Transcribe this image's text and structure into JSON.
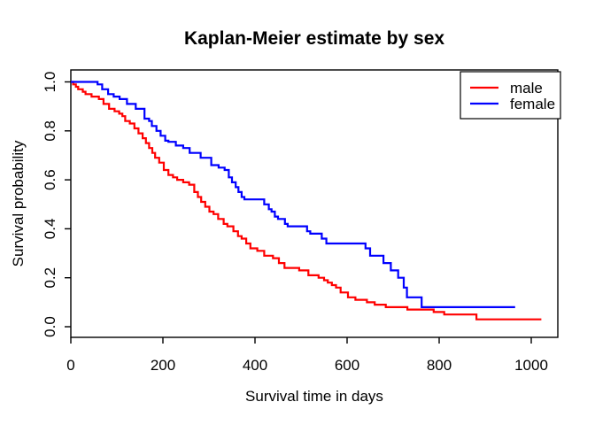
{
  "chart_data": {
    "type": "line",
    "subtype": "kaplan-meier-step",
    "title": "Kaplan-Meier estimate by sex",
    "xlabel": "Survival time in days",
    "ylabel": "Survival probability",
    "xlim": [
      0,
      1057
    ],
    "ylim": [
      -0.04,
      1.04
    ],
    "x_ticks": [
      0,
      200,
      400,
      600,
      800,
      1000
    ],
    "x_tick_labels": [
      "0",
      "200",
      "400",
      "600",
      "800",
      "1000"
    ],
    "y_ticks": [
      0,
      0.2,
      0.4,
      0.6,
      0.8,
      1.0
    ],
    "y_tick_labels": [
      "0.0",
      "0.2",
      "0.4",
      "0.6",
      "0.8",
      "1.0"
    ],
    "grid": false,
    "background": "#ffffff",
    "axis_color": "#000000",
    "legend_position": "top-right",
    "series": [
      {
        "name": "male",
        "color": "#ff0000",
        "points": [
          [
            0,
            1.0
          ],
          [
            5,
            0.99
          ],
          [
            11,
            0.98
          ],
          [
            16,
            0.97
          ],
          [
            26,
            0.96
          ],
          [
            32,
            0.95
          ],
          [
            45,
            0.94
          ],
          [
            61,
            0.93
          ],
          [
            71,
            0.91
          ],
          [
            83,
            0.89
          ],
          [
            95,
            0.88
          ],
          [
            105,
            0.87
          ],
          [
            112,
            0.86
          ],
          [
            118,
            0.84
          ],
          [
            128,
            0.83
          ],
          [
            138,
            0.81
          ],
          [
            147,
            0.79
          ],
          [
            156,
            0.77
          ],
          [
            163,
            0.75
          ],
          [
            170,
            0.73
          ],
          [
            177,
            0.71
          ],
          [
            183,
            0.69
          ],
          [
            192,
            0.67
          ],
          [
            202,
            0.64
          ],
          [
            212,
            0.62
          ],
          [
            222,
            0.61
          ],
          [
            231,
            0.6
          ],
          [
            244,
            0.59
          ],
          [
            257,
            0.58
          ],
          [
            268,
            0.55
          ],
          [
            276,
            0.53
          ],
          [
            283,
            0.51
          ],
          [
            292,
            0.49
          ],
          [
            301,
            0.47
          ],
          [
            310,
            0.46
          ],
          [
            320,
            0.44
          ],
          [
            332,
            0.42
          ],
          [
            340,
            0.41
          ],
          [
            353,
            0.39
          ],
          [
            363,
            0.37
          ],
          [
            371,
            0.36
          ],
          [
            381,
            0.34
          ],
          [
            390,
            0.32
          ],
          [
            405,
            0.31
          ],
          [
            420,
            0.29
          ],
          [
            439,
            0.28
          ],
          [
            452,
            0.26
          ],
          [
            464,
            0.24
          ],
          [
            496,
            0.23
          ],
          [
            516,
            0.21
          ],
          [
            538,
            0.2
          ],
          [
            550,
            0.19
          ],
          [
            558,
            0.18
          ],
          [
            567,
            0.17
          ],
          [
            576,
            0.16
          ],
          [
            586,
            0.14
          ],
          [
            602,
            0.12
          ],
          [
            618,
            0.11
          ],
          [
            643,
            0.1
          ],
          [
            660,
            0.09
          ],
          [
            684,
            0.08
          ],
          [
            731,
            0.07
          ],
          [
            788,
            0.06
          ],
          [
            811,
            0.05
          ],
          [
            881,
            0.03
          ],
          [
            1022,
            0.03
          ]
        ]
      },
      {
        "name": "female",
        "color": "#0000ff",
        "points": [
          [
            0,
            1.0
          ],
          [
            58,
            0.99
          ],
          [
            68,
            0.97
          ],
          [
            81,
            0.95
          ],
          [
            93,
            0.94
          ],
          [
            106,
            0.93
          ],
          [
            122,
            0.91
          ],
          [
            141,
            0.89
          ],
          [
            160,
            0.85
          ],
          [
            170,
            0.84
          ],
          [
            176,
            0.82
          ],
          [
            186,
            0.8
          ],
          [
            195,
            0.78
          ],
          [
            205,
            0.76
          ],
          [
            212,
            0.755
          ],
          [
            228,
            0.74
          ],
          [
            244,
            0.73
          ],
          [
            258,
            0.71
          ],
          [
            282,
            0.69
          ],
          [
            305,
            0.66
          ],
          [
            321,
            0.65
          ],
          [
            334,
            0.64
          ],
          [
            343,
            0.61
          ],
          [
            350,
            0.59
          ],
          [
            358,
            0.57
          ],
          [
            364,
            0.55
          ],
          [
            371,
            0.53
          ],
          [
            377,
            0.52
          ],
          [
            420,
            0.5
          ],
          [
            430,
            0.48
          ],
          [
            436,
            0.47
          ],
          [
            443,
            0.45
          ],
          [
            450,
            0.44
          ],
          [
            465,
            0.42
          ],
          [
            471,
            0.41
          ],
          [
            513,
            0.39
          ],
          [
            520,
            0.38
          ],
          [
            545,
            0.36
          ],
          [
            555,
            0.34
          ],
          [
            640,
            0.32
          ],
          [
            650,
            0.29
          ],
          [
            679,
            0.26
          ],
          [
            695,
            0.23
          ],
          [
            711,
            0.2
          ],
          [
            723,
            0.16
          ],
          [
            730,
            0.12
          ],
          [
            762,
            0.08
          ],
          [
            965,
            0.08
          ]
        ]
      }
    ],
    "legend": {
      "items": [
        {
          "label": "male",
          "color": "#ff0000"
        },
        {
          "label": "female",
          "color": "#0000ff"
        }
      ]
    }
  }
}
